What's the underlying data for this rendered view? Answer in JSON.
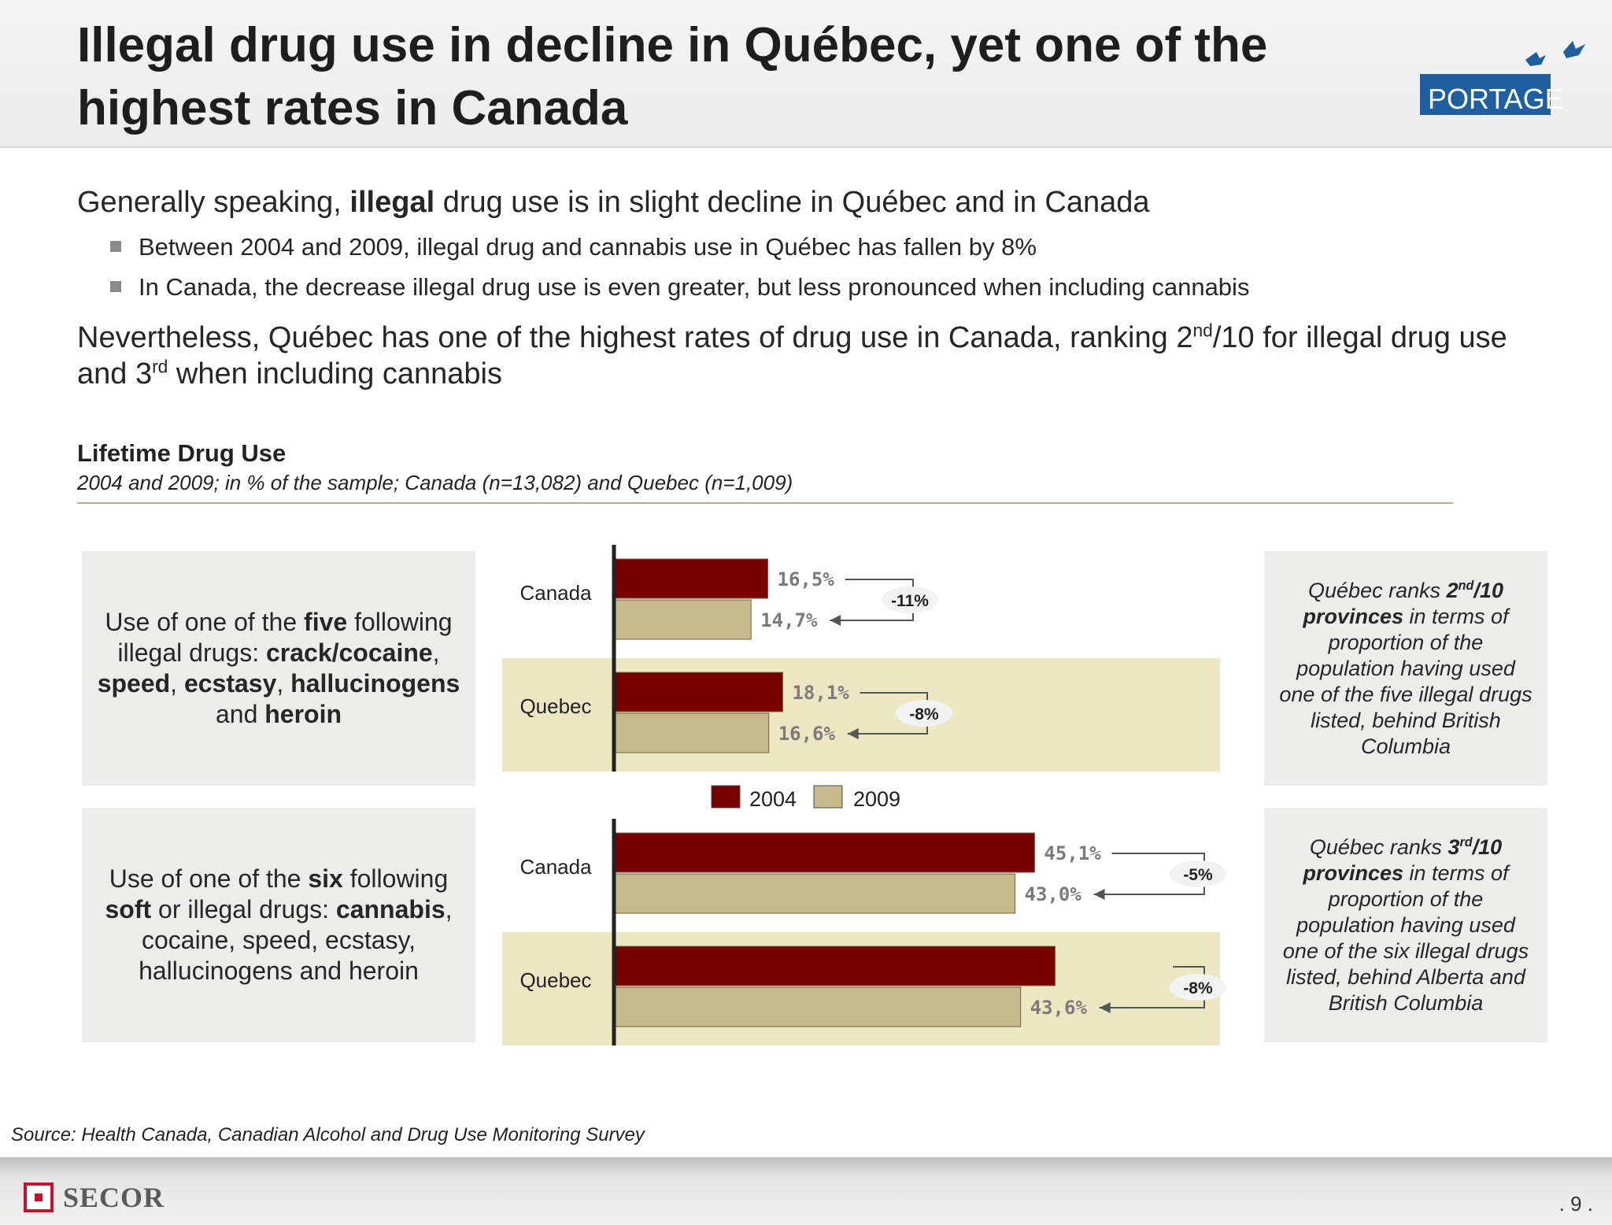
{
  "header": {
    "title": "Illegal drug use in decline in Québec, yet one of the highest rates in Canada",
    "logo_text": "PORTAGE"
  },
  "intro": {
    "line1_pre": "Generally speaking, ",
    "line1_bold": "illegal",
    "line1_post": " drug use is in slight decline in Québec and in Canada",
    "bullet1": "Between 2004 and 2009, illegal drug and cannabis use in Québec has fallen by 8%",
    "bullet2": "In Canada, the decrease illegal drug use is even greater, but less pronounced when including cannabis",
    "line2_a": "Nevertheless, Québec has one of the highest rates of drug use in Canada, ranking 2",
    "line2_sup1": "nd",
    "line2_b": "/10 for illegal drug use",
    "line2_c": "and 3",
    "line2_sup2": "rd",
    "line2_d": " when including cannabis"
  },
  "chart_header": {
    "title": "Lifetime Drug Use",
    "subtitle": "2004 and 2009; in % of the sample; Canada (n=13,082) and Quebec (n=1,009)"
  },
  "left_boxes": {
    "box1": {
      "t1": "Use of one of the ",
      "b1": "five",
      "t2": " following illegal drugs: ",
      "b2": "crack/cocaine",
      "t3": ", ",
      "b3": "speed",
      "t4": ", ",
      "b4": "ecstasy",
      "t5": ", ",
      "b5": "hallucinogens",
      "t6": " and ",
      "b6": "heroin"
    },
    "box2": {
      "t1": "Use of one of the ",
      "b1": "six",
      "t2": " following ",
      "b2": "soft",
      "t3": " or illegal drugs: ",
      "b3": "cannabis",
      "t4": ", cocaine, speed, ecstasy, hallucinogens and heroin"
    }
  },
  "right_boxes": {
    "box1": {
      "t1": "Québec ranks ",
      "b1": "2",
      "sup": "nd",
      "b2": "/10",
      "b3": "provinces",
      "t2": " in terms of proportion of the population having used one of the five illegal drugs listed, behind British Columbia"
    },
    "box2": {
      "t1": "Québec ranks ",
      "b1": "3",
      "sup": "rd",
      "b2": "/10",
      "b3": "provinces",
      "t2": " in terms of proportion of the population having used one of the six illegal drugs listed, behind Alberta and British Columbia"
    }
  },
  "chart_data": [
    {
      "type": "bar",
      "orientation": "horizontal",
      "categories": [
        "Canada",
        "Quebec"
      ],
      "series": [
        {
          "name": "2004",
          "values": [
            16.5,
            18.1
          ],
          "labels": [
            "16,5%",
            "18,1%"
          ]
        },
        {
          "name": "2009",
          "values": [
            14.7,
            16.6
          ],
          "labels": [
            "14,7%",
            "16,6%"
          ]
        }
      ],
      "changes": [
        "-11%",
        "-8%"
      ],
      "xlim": [
        0,
        48
      ]
    },
    {
      "type": "bar",
      "orientation": "horizontal",
      "categories": [
        "Canada",
        "Quebec"
      ],
      "series": [
        {
          "name": "2004",
          "values": [
            45.1,
            47.3
          ],
          "labels": [
            "45,1%",
            ""
          ]
        },
        {
          "name": "2009",
          "values": [
            43.0,
            43.6
          ],
          "labels": [
            "43,0%",
            "43,6%"
          ]
        }
      ],
      "changes": [
        "-5%",
        "-8%"
      ],
      "xlim": [
        0,
        48
      ]
    }
  ],
  "legend": [
    {
      "label": "2004",
      "color": "#7a0000"
    },
    {
      "label": "2009",
      "color": "#c7b98a"
    }
  ],
  "colors": {
    "bar_2004": "#7a0000",
    "bar_2009": "#c7b98a",
    "quebec_band": "#ede6c3",
    "box_bg": "#ececea"
  },
  "footer": {
    "source": "Source:  Health Canada, Canadian Alcohol and Drug Use Monitoring Survey",
    "brand": "SECOR",
    "page": ". 9 ."
  }
}
